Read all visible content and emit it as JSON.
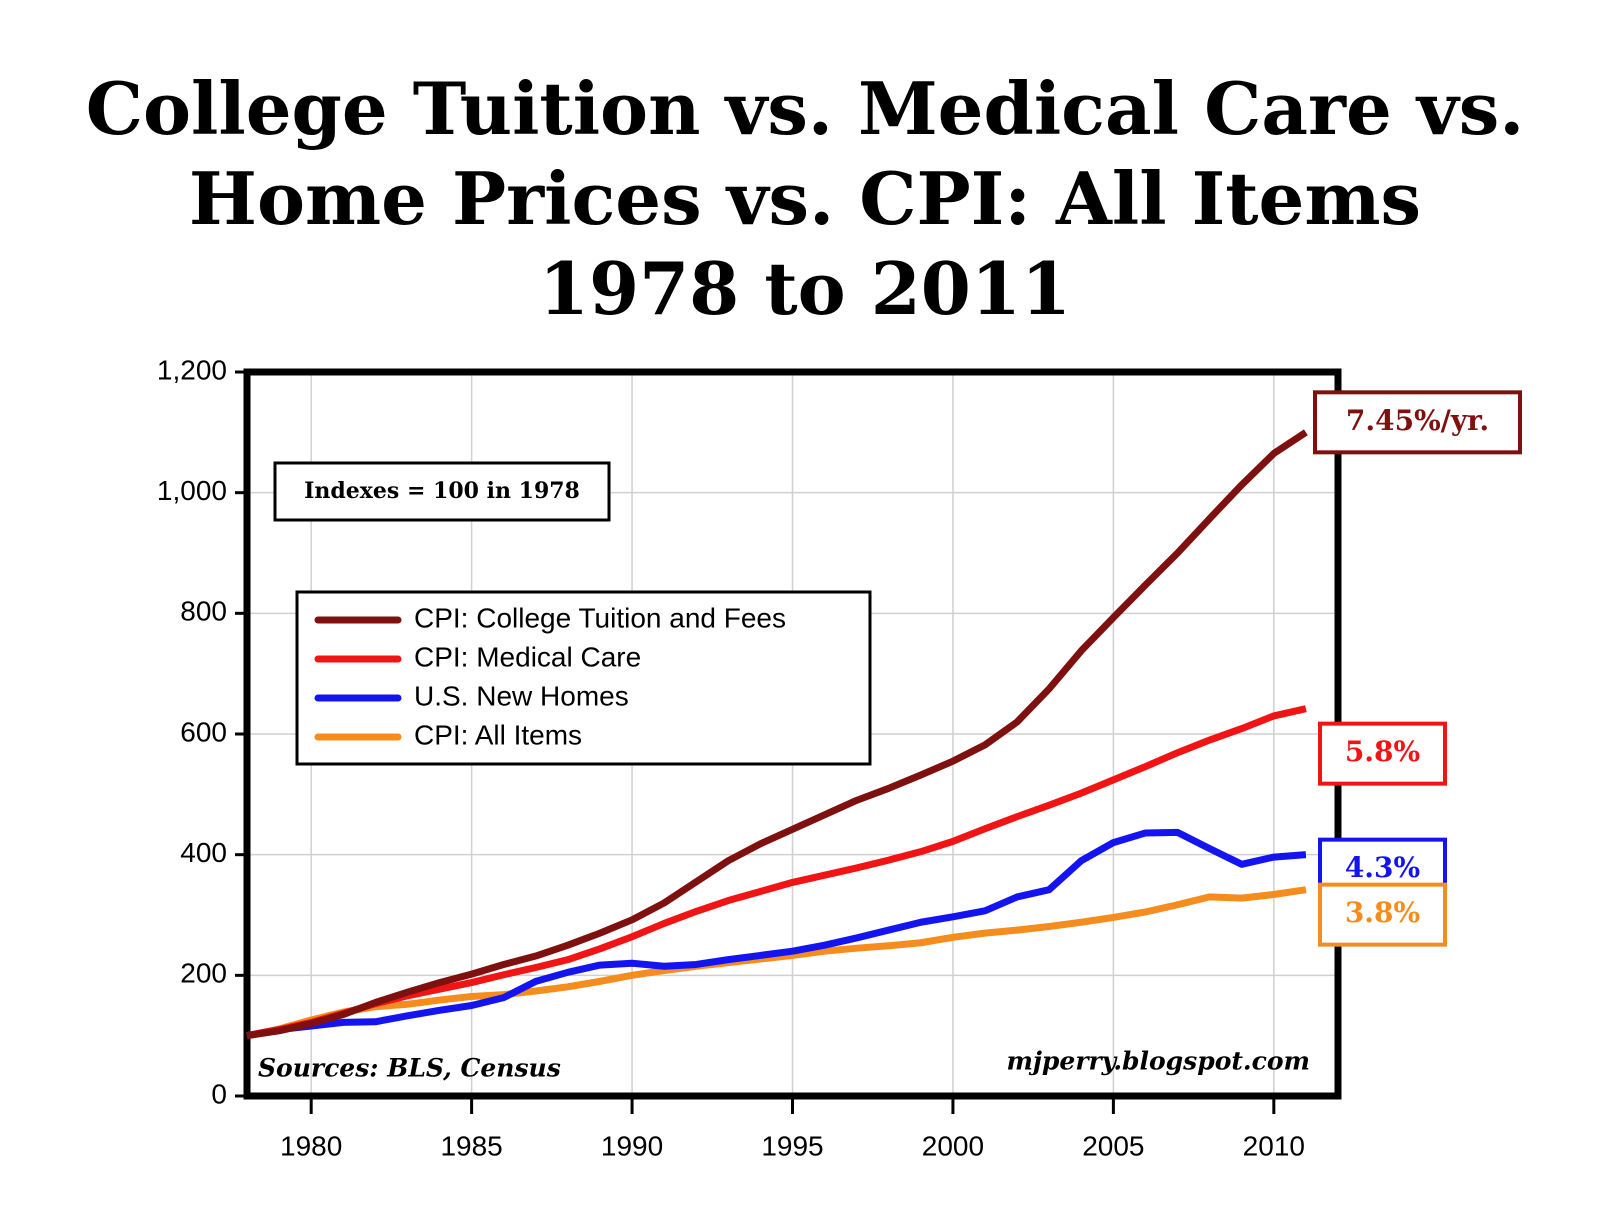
{
  "chart_data": {
    "type": "line",
    "title": [
      "College Tuition vs. Medical Care vs.",
      "Home Prices vs. CPI: All Items",
      "1978 to 2011"
    ],
    "x": [
      1978,
      1979,
      1980,
      1981,
      1982,
      1983,
      1984,
      1985,
      1986,
      1987,
      1988,
      1989,
      1990,
      1991,
      1992,
      1993,
      1994,
      1995,
      1996,
      1997,
      1998,
      1999,
      2000,
      2001,
      2002,
      2003,
      2004,
      2005,
      2006,
      2007,
      2008,
      2009,
      2010,
      2011
    ],
    "series": [
      {
        "name": "CPI: College Tuition and Fees",
        "color": "#7f1010",
        "values": [
          100,
          108,
          120,
          135,
          155,
          172,
          188,
          202,
          218,
          232,
          250,
          270,
          292,
          320,
          355,
          390,
          418,
          442,
          466,
          490,
          510,
          532,
          555,
          582,
          620,
          675,
          738,
          793,
          847,
          900,
          957,
          1013,
          1065,
          1100
        ]
      },
      {
        "name": "CPI: Medical Care",
        "color": "#f01414",
        "values": [
          100,
          110,
          122,
          137,
          153,
          166,
          177,
          188,
          201,
          213,
          226,
          244,
          264,
          286,
          306,
          324,
          339,
          354,
          366,
          378,
          391,
          405,
          422,
          443,
          463,
          482,
          502,
          524,
          546,
          569,
          590,
          609,
          630,
          642
        ]
      },
      {
        "name": "U.S. New Homes",
        "color": "#1414f0",
        "values": [
          100,
          110,
          116,
          122,
          123,
          133,
          142,
          150,
          163,
          190,
          205,
          217,
          220,
          215,
          218,
          226,
          233,
          240,
          250,
          262,
          275,
          288,
          297,
          307,
          330,
          342,
          390,
          420,
          436,
          437,
          410,
          384,
          396,
          400
        ]
      },
      {
        "name": "CPI: All Items",
        "color": "#f58c1e",
        "values": [
          100,
          111,
          126,
          139,
          148,
          152,
          159,
          165,
          168,
          174,
          181,
          190,
          200,
          208,
          215,
          221,
          227,
          233,
          240,
          245,
          249,
          254,
          263,
          270,
          275,
          281,
          288,
          296,
          305,
          317,
          330,
          328,
          334,
          342
        ]
      }
    ],
    "end_labels": [
      "7.45%/yr.",
      "5.8%",
      "4.3%",
      "3.8%"
    ],
    "annotations": [
      "Indexes = 100 in 1978",
      "Sources: BLS, Census",
      "mjperry.blogspot.com"
    ],
    "xlim": [
      1978,
      2012
    ],
    "xticks": [
      1980,
      1985,
      1990,
      1995,
      2000,
      2005,
      2010
    ],
    "ylim": [
      0,
      1200
    ],
    "yticks": [
      0,
      200,
      400,
      600,
      800,
      {
        "value": 1000,
        "label": "1,000"
      },
      {
        "value": 1200,
        "label": "1,200"
      }
    ],
    "grid": true
  }
}
